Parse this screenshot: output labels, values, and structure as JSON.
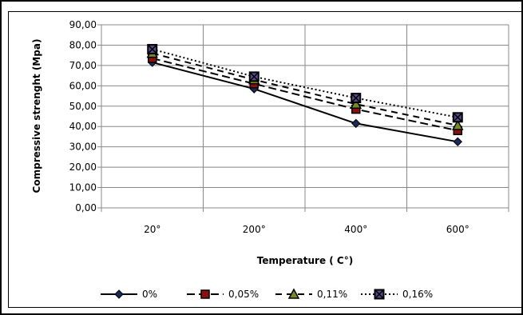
{
  "chart_data": {
    "type": "line",
    "title": "",
    "xlabel": "Temperature ( C°)",
    "ylabel": "Compressive strenght (Mpa)",
    "categories": [
      "20°",
      "200°",
      "400°",
      "600°"
    ],
    "ylim": [
      0,
      90
    ],
    "y_ticks": [
      "0,00",
      "10,00",
      "20,00",
      "30,00",
      "40,00",
      "50,00",
      "60,00",
      "70,00",
      "80,00",
      "90,00"
    ],
    "grid": true,
    "legend_position": "bottom",
    "series": [
      {
        "name": "0%",
        "values": [
          71.5,
          58.5,
          41.5,
          32.5
        ],
        "color": "#000000",
        "dash": "solid",
        "marker": "diamond"
      },
      {
        "name": "0,05%",
        "values": [
          73.5,
          61.0,
          48.5,
          38.0
        ],
        "color": "#000000",
        "dash": "longdash",
        "marker": "square"
      },
      {
        "name": "0,11%",
        "values": [
          76.0,
          63.0,
          51.0,
          40.5
        ],
        "color": "#000000",
        "dash": "dash",
        "marker": "triangle"
      },
      {
        "name": "0,16%",
        "values": [
          78.0,
          64.5,
          54.0,
          44.5
        ],
        "color": "#000000",
        "dash": "dot",
        "marker": "square-x"
      }
    ]
  }
}
